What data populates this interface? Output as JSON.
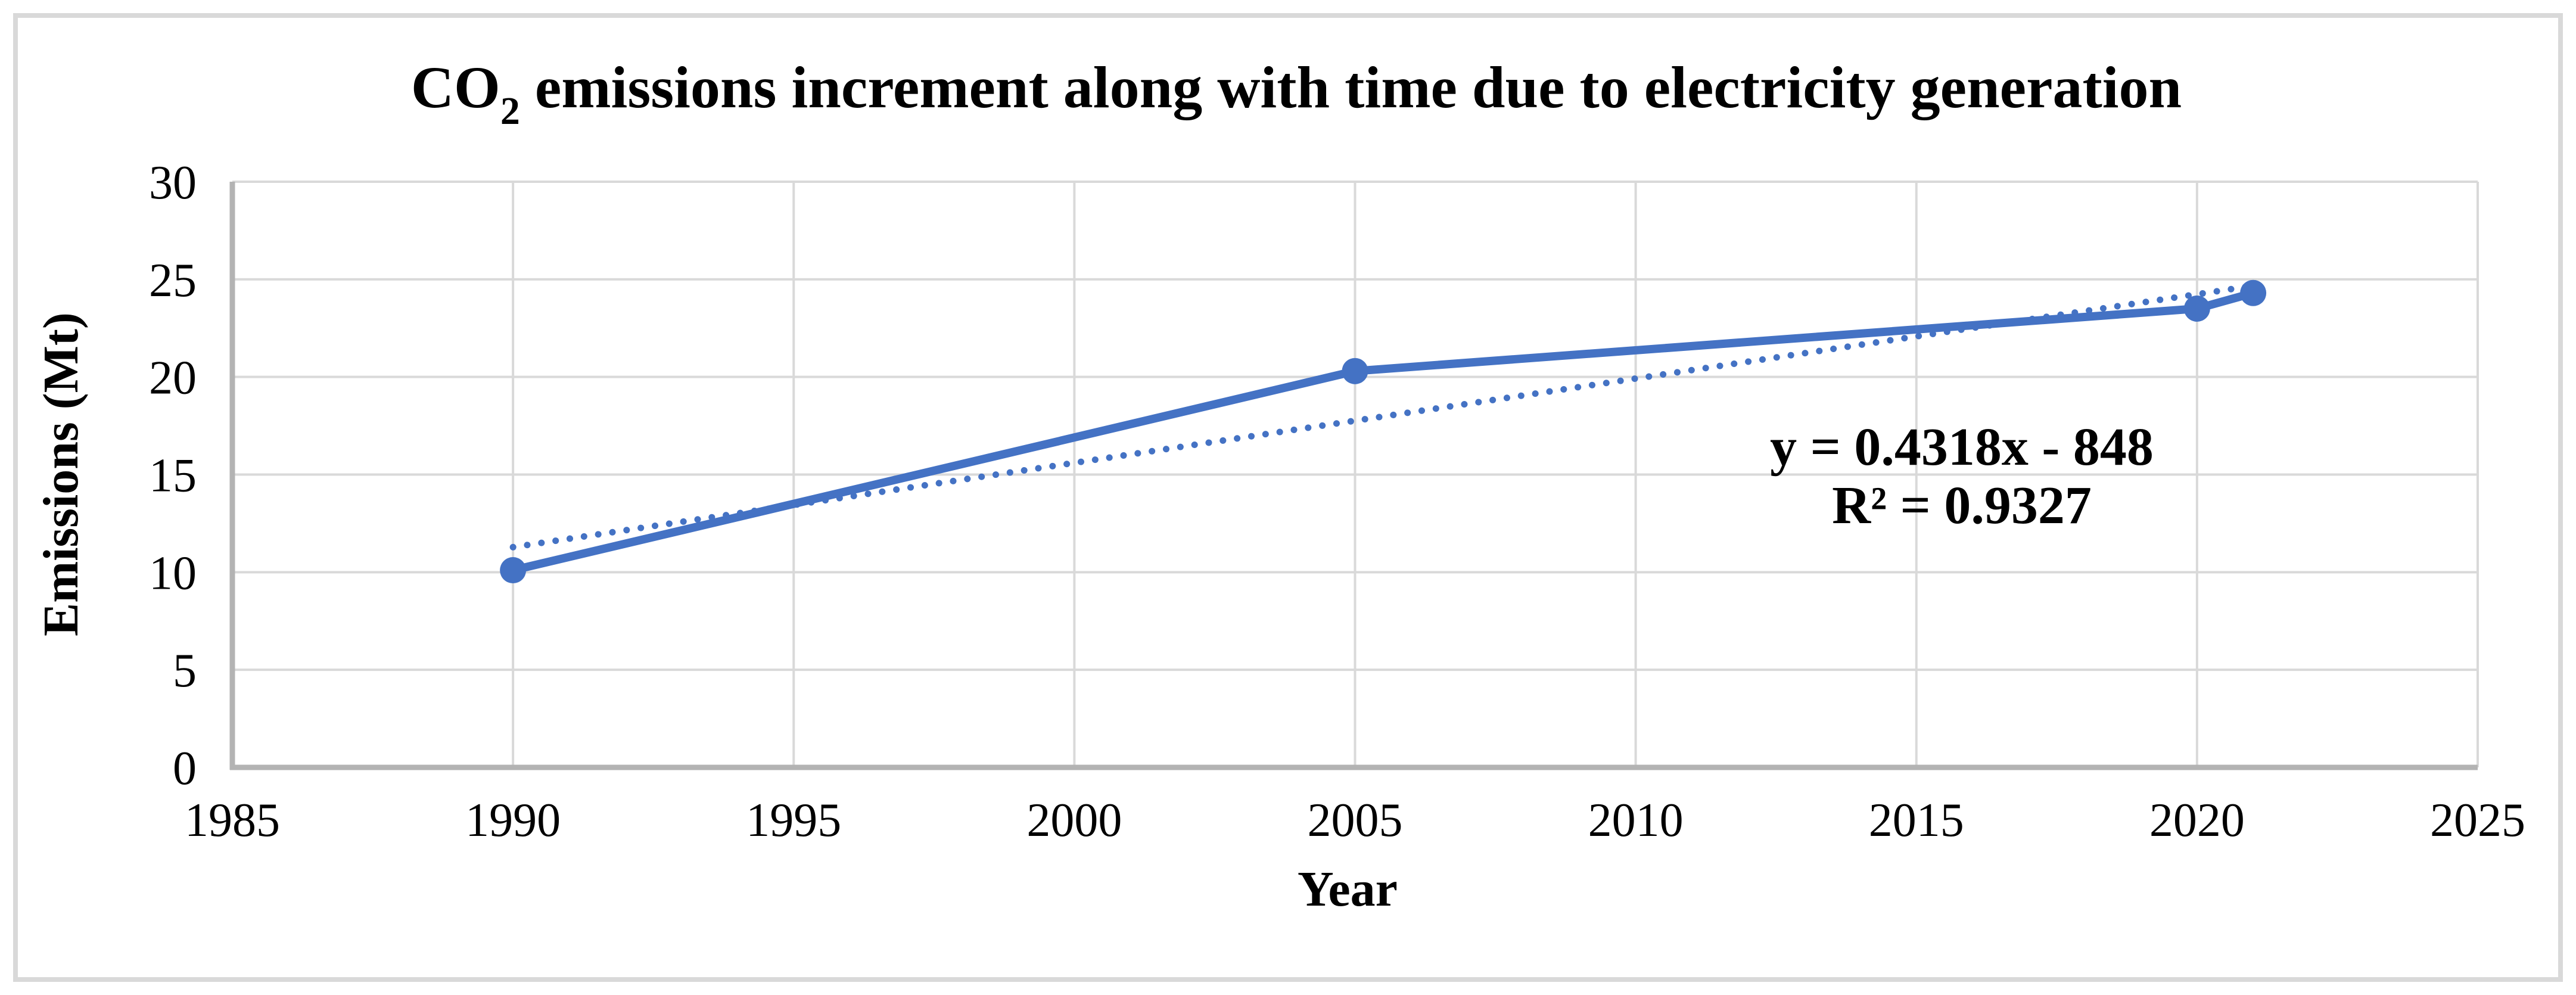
{
  "colors": {
    "series": "#4472C4",
    "gridline": "#D9D9D9",
    "axis_line": "#B3B3B3",
    "chart_border": "#D9D9D9",
    "background": "#FFFFFF",
    "text": "#000000"
  },
  "chart_data": {
    "type": "line",
    "title": "CO2 emissions increment along with time due to electricity generation",
    "title_parts": {
      "main": "CO",
      "subscript": "2",
      "rest": " emissions increment along with time due to electricity generation"
    },
    "xlabel": "Year",
    "ylabel": "Emissions (Mt)",
    "xlim": [
      1985,
      2025
    ],
    "ylim": [
      0,
      30
    ],
    "xticks": [
      1985,
      1990,
      1995,
      2000,
      2005,
      2010,
      2015,
      2020,
      2025
    ],
    "yticks": [
      0,
      5,
      10,
      15,
      20,
      25,
      30
    ],
    "grid": "on",
    "legend_position": "none",
    "series": [
      {
        "name": "CO2 emissions",
        "style": "solid-line-with-markers",
        "points": [
          [
            1990,
            10.1
          ],
          [
            2005,
            20.3
          ],
          [
            2020,
            23.5
          ],
          [
            2021,
            24.3
          ]
        ]
      }
    ],
    "trendline": {
      "type": "linear",
      "style": "dotted",
      "slope": 0.4318,
      "intercept": -848,
      "x_range": [
        1990,
        2021
      ],
      "equation_label": "y = 0.4318x - 848",
      "r2_label": "R² = 0.9327"
    }
  }
}
